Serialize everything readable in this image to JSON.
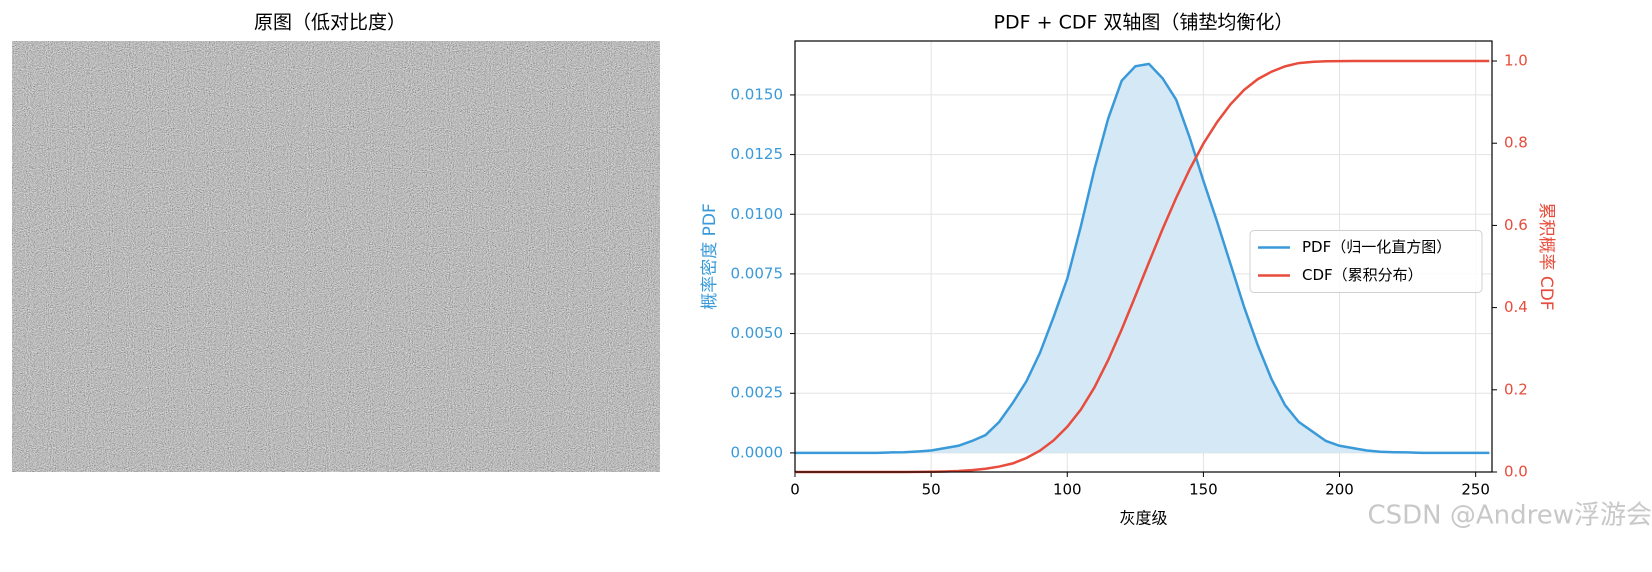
{
  "chart_data": [
    {
      "type": "image",
      "title": "原图（低对比度）"
    },
    {
      "type": "line",
      "title": "PDF + CDF 双轴图（铺垫均衡化）",
      "xlabel": "灰度级",
      "ylabel": "概率密度 PDF",
      "y2label": "累积概率 CDF",
      "xlim": [
        0,
        256
      ],
      "xticks": [
        0,
        50,
        100,
        150,
        200,
        250
      ],
      "ylim": [
        -0.0008,
        0.01726
      ],
      "yticks": [
        {
          "value": 0,
          "label": "0.0000"
        },
        {
          "value": 0.0025,
          "label": "0.0025"
        },
        {
          "value": 0.005,
          "label": "0.0050"
        },
        {
          "value": 0.0075,
          "label": "0.0075"
        },
        {
          "value": 0.01,
          "label": "0.0100"
        },
        {
          "value": 0.0125,
          "label": "0.0125"
        },
        {
          "value": 0.015,
          "label": "0.0150"
        }
      ],
      "y2lim": [
        0,
        1.0487
      ],
      "y2ticks": [
        {
          "value": 0,
          "label": "0.0"
        },
        0.2,
        0.4,
        0.6,
        0.8,
        {
          "value": 1,
          "label": "1.0"
        }
      ],
      "grid": true,
      "legend": "center right",
      "x": [
        0,
        5,
        10,
        15,
        20,
        25,
        30,
        35,
        40,
        45,
        50,
        55,
        60,
        65,
        70,
        75,
        80,
        85,
        90,
        95,
        100,
        105,
        110,
        115,
        120,
        125,
        130,
        135,
        140,
        145,
        150,
        155,
        160,
        165,
        170,
        175,
        180,
        185,
        190,
        195,
        200,
        205,
        210,
        215,
        220,
        225,
        230,
        235,
        240,
        245,
        250,
        255
      ],
      "series": [
        {
          "name": "PDF（归一化直方图）",
          "color": "#3a9ad9",
          "fill": "#d4e8f6",
          "axis": "y",
          "values": [
            0,
            0,
            0,
            0,
            0,
            0,
            0,
            2e-05,
            3e-05,
            6e-05,
            0.0001,
            0.0002,
            0.0003,
            0.0005,
            0.00075,
            0.0013,
            0.0021,
            0.003,
            0.0042,
            0.0057,
            0.0073,
            0.0095,
            0.0119,
            0.014,
            0.0156,
            0.0162,
            0.0163,
            0.0157,
            0.0148,
            0.0132,
            0.0114,
            0.0097,
            0.0079,
            0.0061,
            0.0045,
            0.0031,
            0.002,
            0.0013,
            0.0009,
            0.0005,
            0.0003,
            0.0002,
            0.0001,
            5e-05,
            3e-05,
            2e-05,
            0,
            0,
            0,
            0,
            0,
            0
          ]
        },
        {
          "name": "CDF（累积分布）",
          "color": "#e74c3c",
          "axis": "y2",
          "values": [
            0,
            0,
            0,
            0,
            0,
            0,
            0,
            0,
            0,
            0.0002,
            0.0006,
            0.0013,
            0.0025,
            0.0045,
            0.008,
            0.0132,
            0.021,
            0.034,
            0.052,
            0.077,
            0.11,
            0.152,
            0.206,
            0.272,
            0.347,
            0.428,
            0.51,
            0.591,
            0.667,
            0.737,
            0.799,
            0.851,
            0.895,
            0.93,
            0.956,
            0.974,
            0.987,
            0.995,
            0.998,
            0.9993,
            0.9997,
            0.9999,
            1,
            1,
            1,
            1,
            1,
            1,
            1,
            1,
            1,
            1
          ]
        }
      ]
    }
  ],
  "watermark": "CSDN @Andrew浮游会"
}
